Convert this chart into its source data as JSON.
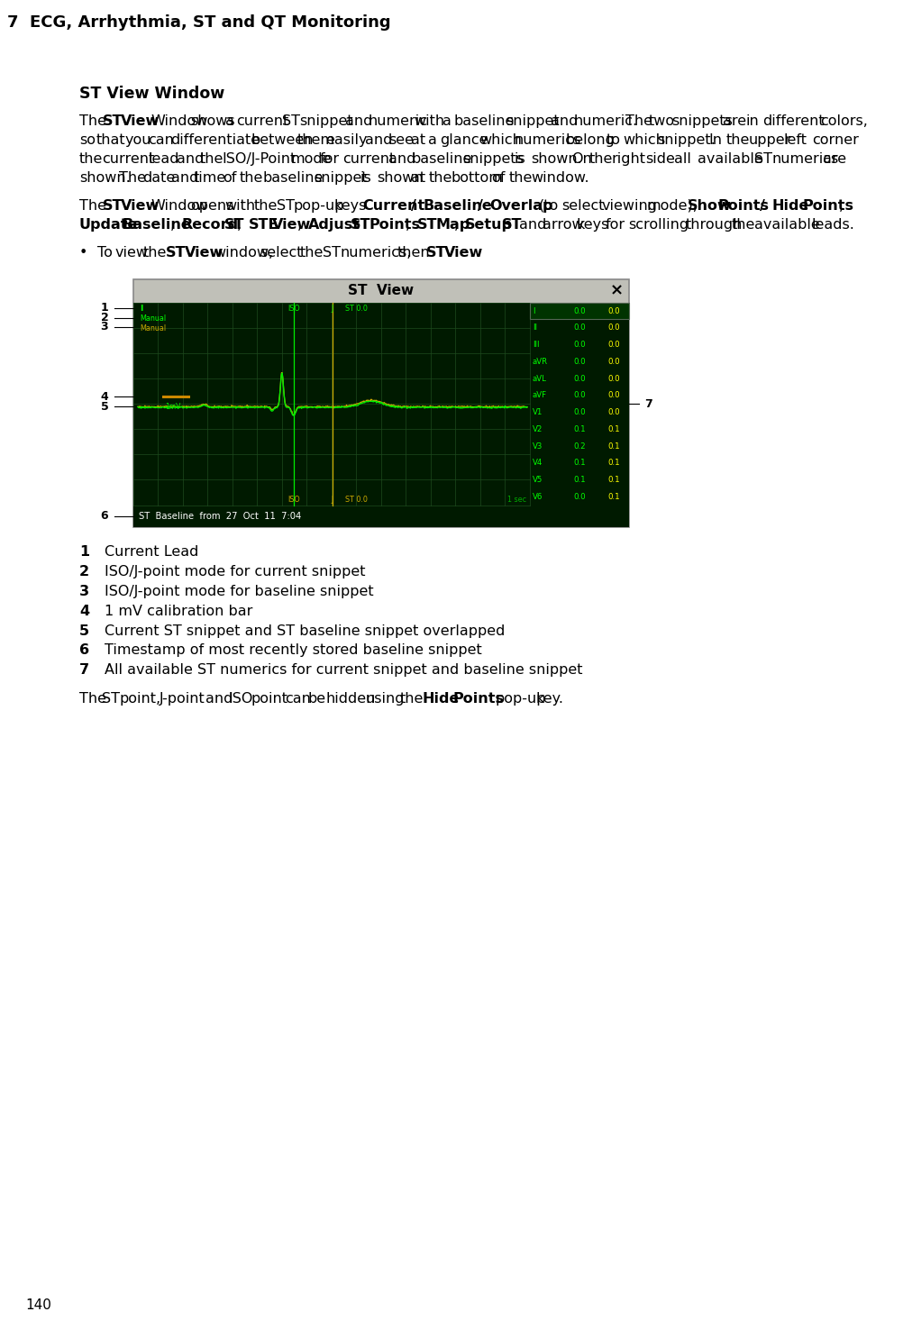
{
  "header_text": "7  ECG, Arrhythmia, ST and QT Monitoring",
  "header_bg": "#7096c8",
  "header_text_color": "#000000",
  "page_number": "140",
  "section_title": "ST View Window",
  "paragraphs": [
    {
      "segments": [
        {
          "text": "The ",
          "bold": false
        },
        {
          "text": "ST View",
          "bold": true
        },
        {
          "text": " Window shows a current ST snippet and numeric with a baseline snippet and numeric. The two snippets are in different colors, so that you can differentiate between them easily and see at a glance which numerics belong to which snippet. In the upper left corner the current lead and the ISO/J-Point mode for current and baseline snippets is shown. On the right side all available ST numerics are shown. The date and time of the baseline snippet is shown at the bottom of the window.",
          "bold": false
        }
      ]
    },
    {
      "segments": [
        {
          "text": "The ",
          "bold": false
        },
        {
          "text": "ST View",
          "bold": true
        },
        {
          "text": " Window opens with the ST pop-up keys ",
          "bold": false
        },
        {
          "text": "Current / Baseline / Overlap",
          "bold": true
        },
        {
          "text": " (to select viewing mode), ",
          "bold": false
        },
        {
          "text": "Show Points / Hide Points",
          "bold": true
        },
        {
          "text": ", ",
          "bold": false
        },
        {
          "text": "Update Baseline",
          "bold": true
        },
        {
          "text": ", ",
          "bold": false
        },
        {
          "text": "Record ST",
          "bold": true
        },
        {
          "text": ", ",
          "bold": false
        },
        {
          "text": "STE View",
          "bold": true
        },
        {
          "text": ", ",
          "bold": false
        },
        {
          "text": "Adjust ST Points",
          "bold": true
        },
        {
          "text": ", ",
          "bold": false
        },
        {
          "text": "ST Map",
          "bold": true
        },
        {
          "text": ", ",
          "bold": false
        },
        {
          "text": "Setup ST",
          "bold": true
        },
        {
          "text": " and arrow keys for scrolling through the available leads.",
          "bold": false
        }
      ]
    }
  ],
  "bullet_segments": [
    {
      "text": "To view the ",
      "bold": false
    },
    {
      "text": "ST View",
      "bold": true
    },
    {
      "text": " window, select the ST numerics, then ",
      "bold": false
    },
    {
      "text": "ST View",
      "bold": true
    },
    {
      "text": ".",
      "bold": false
    }
  ],
  "numbered_items": [
    {
      "num": "1",
      "text": "Current Lead"
    },
    {
      "num": "2",
      "text": "ISO/J-point mode for current snippet"
    },
    {
      "num": "3",
      "text": "ISO/J-point mode for baseline snippet"
    },
    {
      "num": "4",
      "text": "1 mV calibration bar"
    },
    {
      "num": "5",
      "text": "Current ST snippet and ST baseline snippet overlapped"
    },
    {
      "num": "6",
      "text": "Timestamp of most recently stored baseline snippet"
    },
    {
      "num": "7",
      "text": "All available ST numerics for current snippet and baseline snippet"
    }
  ],
  "footer_segments": [
    {
      "text": "The ST point, J-point and ISO point can be hidden using the ",
      "bold": false
    },
    {
      "text": "Hide Points",
      "bold": true
    },
    {
      "text": " pop-up key.",
      "bold": false
    }
  ],
  "bg_color": "#ffffff",
  "text_color": "#000000",
  "body_fontsize": 11.5,
  "section_title_fontsize": 12.5,
  "st_leads": [
    "I",
    "II",
    "III",
    "aVR",
    "aVL",
    "aVF",
    "V1",
    "V2",
    "V3",
    "V4",
    "V5",
    "V6"
  ],
  "st_current": [
    "0.0",
    "0.0",
    "0.0",
    "0.0",
    "0.0",
    "0.0",
    "0.0",
    "0.1",
    "0.2",
    "0.1",
    "0.1",
    "0.0"
  ],
  "st_baseline": [
    "0.0",
    "0.0",
    "0.0",
    "0.0",
    "0.0",
    "0.0",
    "0.0",
    "0.1",
    "0.1",
    "0.1",
    "0.1",
    "0.1"
  ]
}
